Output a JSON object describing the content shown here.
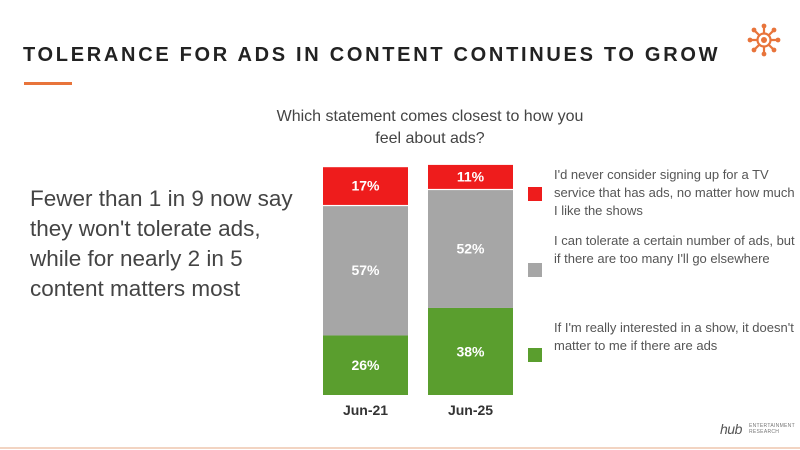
{
  "header": {
    "title": "TOLERANCE FOR ADS IN CONTENT CONTINUES TO GROW",
    "accent_color": "#e8743b",
    "logo_icon": "network-hub-icon"
  },
  "takeaway": "Fewer than 1 in 9 now say they won't tolerate ads, while for nearly 2 in 5 content matters most",
  "chart_data": {
    "type": "bar",
    "stacked": true,
    "percent_stacked": true,
    "title": "Which statement comes closest to how you feel about ads?",
    "categories": [
      "Jun-21",
      "Jun-25"
    ],
    "series": [
      {
        "name": "If I'm really interested in a show, it doesn't matter to me if there are ads",
        "color": "#5a9e2e",
        "values": [
          26,
          38
        ]
      },
      {
        "name": "I can tolerate a certain number of ads, but if there are too many I'll go elsewhere",
        "color": "#a6a6a6",
        "values": [
          57,
          52
        ]
      },
      {
        "name": "I'd never consider signing up for a TV service that has ads, no matter how much I like the shows",
        "color": "#ee1c1c",
        "values": [
          17,
          11
        ]
      }
    ],
    "value_format": "{v}%",
    "ylim": [
      0,
      100
    ],
    "legend_position": "right",
    "grid": false
  },
  "footer": {
    "brand_name": "hub",
    "brand_sub_line1": "ENTERTAINMENT",
    "brand_sub_line2": "RESEARCH"
  }
}
